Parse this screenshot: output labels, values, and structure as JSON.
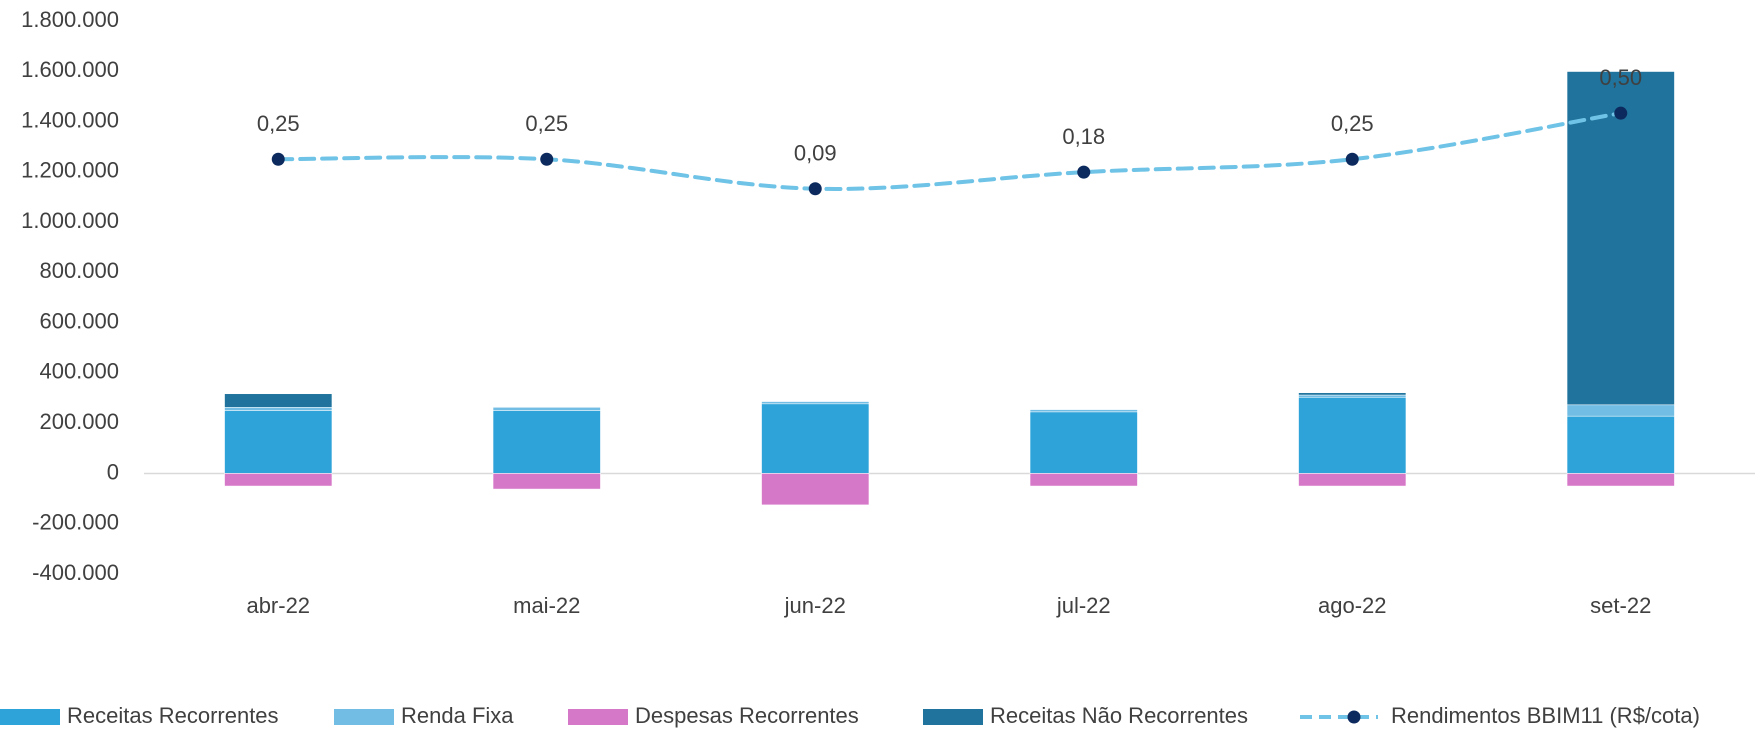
{
  "chart_data": {
    "type": "bar",
    "stacked": true,
    "categories": [
      "abr-22",
      "mai-22",
      "jun-22",
      "jul-22",
      "ago-22",
      "set-22"
    ],
    "series": [
      {
        "name": "Receitas Recorrentes",
        "color": "#2ea3d9",
        "values": [
          250000,
          250000,
          277000,
          245000,
          303000,
          228000
        ]
      },
      {
        "name": "Renda Fixa",
        "color": "#71bde4",
        "values": [
          13000,
          13000,
          9000,
          9000,
          9000,
          45000
        ]
      },
      {
        "name": "Despesas Recorrentes",
        "color": "#d678c8",
        "values": [
          -50000,
          -62000,
          -125000,
          -50000,
          -50000,
          -50000
        ]
      },
      {
        "name": "Receitas Não Recorrentes",
        "color": "#1f739c",
        "values": [
          54000,
          0,
          0,
          0,
          9000,
          1326000
        ]
      },
      {
        "name": "Rendimentos BBIM11 (R$/cota)",
        "type": "line",
        "axis": "y2",
        "color": "#6ec3e6",
        "marker_color": "#0c2a5e",
        "values": [
          0.25,
          0.25,
          0.09,
          0.18,
          0.25,
          0.5
        ],
        "value_labels": [
          "0,25",
          "0,25",
          "0,09",
          "0,18",
          "0,25",
          "0,50"
        ]
      }
    ],
    "ylim": [
      -400000,
      1800000
    ],
    "yticks": [
      {
        "value": -400000,
        "label": "-400.000"
      },
      {
        "value": -200000,
        "label": "-200.000"
      },
      0,
      {
        "value": 200000,
        "label": "200.000"
      },
      {
        "value": 400000,
        "label": "400.000"
      },
      {
        "value": 600000,
        "label": "600.000"
      },
      {
        "value": 800000,
        "label": "800.000"
      },
      {
        "value": 1000000,
        "label": "1.000.000"
      },
      {
        "value": 1200000,
        "label": "1.200.000"
      },
      {
        "value": 1400000,
        "label": "1.400.000"
      },
      {
        "value": 1600000,
        "label": "1.600.000"
      },
      {
        "value": 1800000,
        "label": "1.800.000"
      }
    ],
    "y2lim": [
      -2,
      1
    ],
    "grid": false,
    "legend": "bottom"
  }
}
